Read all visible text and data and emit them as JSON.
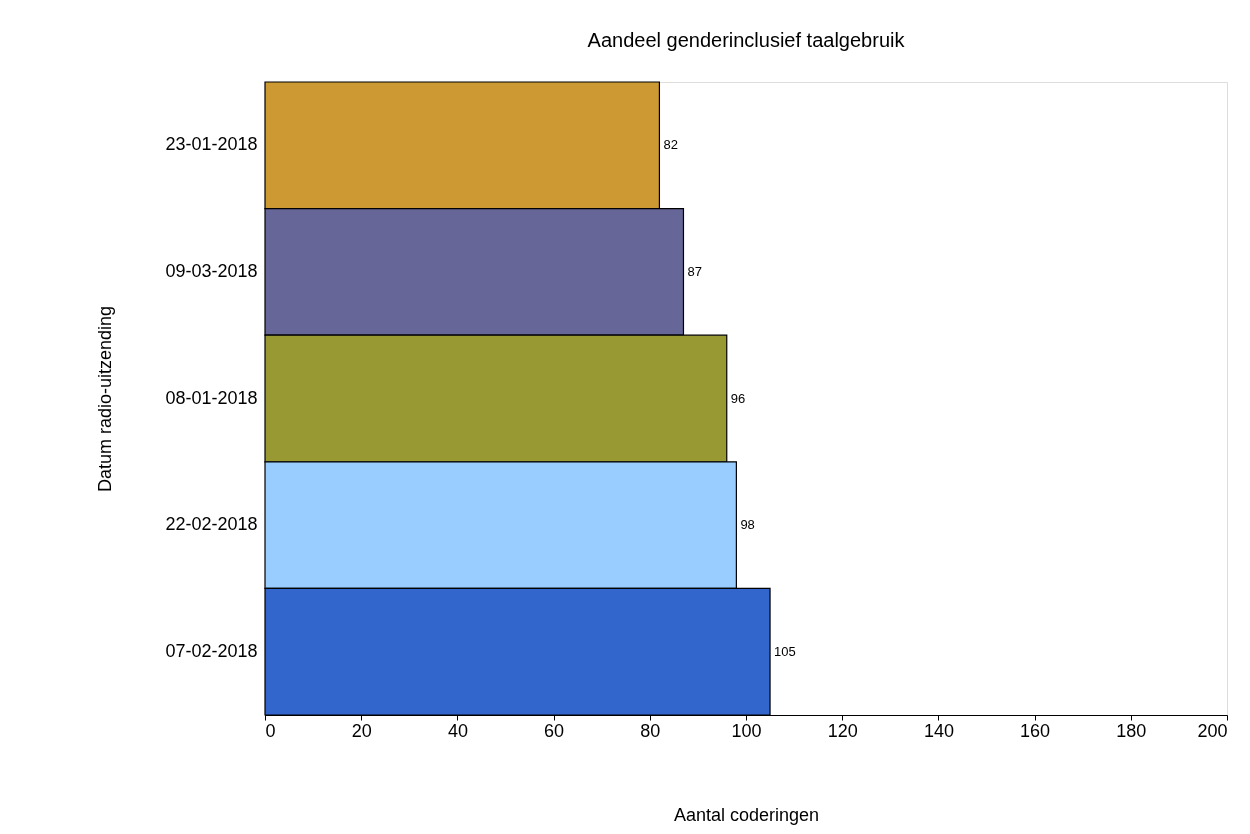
{
  "chart_data": {
    "type": "bar",
    "orientation": "horizontal",
    "title": "Aandeel genderinclusief taalgebruik",
    "xlabel": "Aantal coderingen",
    "ylabel": "Datum radio-uitzending",
    "categories": [
      "23-01-2018",
      "09-03-2018",
      "08-01-2018",
      "22-02-2018",
      "07-02-2018"
    ],
    "values": [
      82,
      87,
      96,
      98,
      105
    ],
    "colors": [
      "#cc9933",
      "#666699",
      "#999933",
      "#99ccff",
      "#3366cc"
    ],
    "xlim": [
      0,
      200
    ],
    "xticks": [
      0,
      20,
      40,
      60,
      80,
      100,
      120,
      140,
      160,
      180,
      200
    ],
    "data_labels": true,
    "grid": false,
    "legend": false
  }
}
